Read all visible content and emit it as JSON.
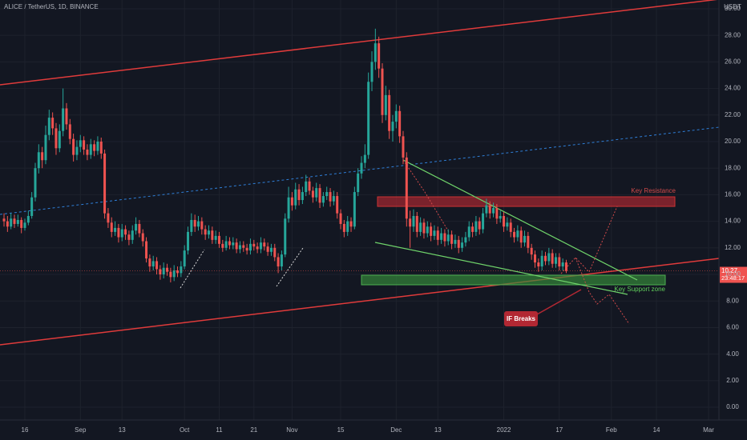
{
  "chart_data": {
    "type": "candlestick",
    "title": "ALICE / TetherUS, 1D, BINANCE",
    "currency": "USDT",
    "countdown": "23:48:17",
    "up_color": "#26a69a",
    "down_color": "#ef5350",
    "grid": true,
    "ylim": [
      -0.96,
      30.66
    ],
    "yticks": [
      {
        "value": 0,
        "label": "0.00"
      },
      {
        "value": 2,
        "label": "2.00"
      },
      {
        "value": 4,
        "label": "4.00"
      },
      {
        "value": 6,
        "label": "6.00"
      },
      {
        "value": 8,
        "label": "8.00"
      },
      {
        "value": 10,
        "label": "10.00"
      },
      {
        "value": 12,
        "label": "12.00"
      },
      {
        "value": 14,
        "label": "14.00"
      },
      {
        "value": 16,
        "label": "16.00"
      },
      {
        "value": 18,
        "label": "18.00"
      },
      {
        "value": 20,
        "label": "20.00"
      },
      {
        "value": 22,
        "label": "22.00"
      },
      {
        "value": 24,
        "label": "24.00"
      },
      {
        "value": 26,
        "label": "26.00"
      },
      {
        "value": 28,
        "label": "28.00"
      },
      {
        "value": 30,
        "label": "30.00"
      }
    ],
    "xlim": [
      -1.16,
      206
    ],
    "xticks": [
      {
        "value": 6,
        "label": "16"
      },
      {
        "value": 22,
        "label": "Sep"
      },
      {
        "value": 34,
        "label": "13"
      },
      {
        "value": 52,
        "label": "Oct"
      },
      {
        "value": 62,
        "label": "11"
      },
      {
        "value": 72,
        "label": "21"
      },
      {
        "value": 83,
        "label": "Nov"
      },
      {
        "value": 97,
        "label": "15"
      },
      {
        "value": 113,
        "label": "Dec"
      },
      {
        "value": 125,
        "label": "13"
      },
      {
        "value": 144,
        "label": "2022"
      },
      {
        "value": 160,
        "label": "17"
      },
      {
        "value": 175,
        "label": "Feb"
      },
      {
        "value": 188,
        "label": "14"
      },
      {
        "value": 203,
        "label": "Mar"
      }
    ],
    "annotations": {
      "resistance": "Key Resistance",
      "support": "Key Support zone",
      "breaks": "IF Breaks"
    },
    "candles": [
      [
        14.2,
        14.6,
        13.6,
        14.0
      ],
      [
        14.0,
        14.4,
        13.2,
        13.6
      ],
      [
        13.6,
        14.6,
        13.4,
        14.2
      ],
      [
        14.2,
        14.5,
        13.5,
        13.8
      ],
      [
        13.8,
        14.5,
        13.6,
        14.1
      ],
      [
        14.1,
        14.3,
        13.1,
        13.5
      ],
      [
        13.5,
        14.2,
        13.3,
        13.9
      ],
      [
        13.9,
        14.8,
        13.7,
        14.4
      ],
      [
        14.4,
        16.2,
        14.2,
        15.8
      ],
      [
        15.8,
        18.4,
        15.5,
        18.0
      ],
      [
        18.0,
        19.8,
        17.6,
        19.2
      ],
      [
        19.2,
        19.6,
        18.0,
        18.6
      ],
      [
        18.6,
        21.2,
        18.3,
        20.5
      ],
      [
        20.5,
        22.4,
        20.1,
        21.8
      ],
      [
        21.8,
        22.2,
        20.5,
        21.0
      ],
      [
        21.0,
        21.4,
        19.0,
        19.5
      ],
      [
        19.5,
        21.3,
        19.2,
        20.8
      ],
      [
        20.8,
        24.0,
        20.4,
        22.5
      ],
      [
        22.5,
        22.9,
        20.9,
        21.3
      ],
      [
        21.3,
        21.7,
        19.8,
        20.2
      ],
      [
        20.2,
        20.6,
        18.5,
        19.0
      ],
      [
        19.0,
        20.1,
        18.6,
        19.6
      ],
      [
        19.6,
        20.5,
        19.2,
        20.1
      ],
      [
        20.1,
        20.4,
        19.0,
        19.4
      ],
      [
        19.4,
        19.8,
        18.6,
        19.0
      ],
      [
        19.0,
        20.2,
        18.7,
        19.8
      ],
      [
        19.8,
        20.1,
        18.9,
        19.3
      ],
      [
        19.3,
        20.4,
        19.0,
        20.0
      ],
      [
        20.0,
        20.3,
        18.7,
        19.1
      ],
      [
        19.1,
        19.4,
        14.2,
        14.6
      ],
      [
        14.6,
        15.0,
        13.5,
        13.9
      ],
      [
        13.9,
        14.3,
        12.8,
        13.2
      ],
      [
        13.2,
        14.0,
        12.9,
        13.5
      ],
      [
        13.5,
        13.8,
        12.4,
        12.8
      ],
      [
        12.8,
        13.8,
        12.5,
        13.4
      ],
      [
        13.4,
        13.7,
        12.6,
        13.0
      ],
      [
        13.0,
        13.3,
        12.2,
        12.6
      ],
      [
        12.6,
        13.7,
        12.3,
        13.3
      ],
      [
        13.3,
        14.3,
        13.0,
        13.8
      ],
      [
        13.8,
        14.1,
        12.8,
        13.1
      ],
      [
        13.1,
        13.4,
        12.1,
        12.5
      ],
      [
        12.5,
        12.8,
        10.9,
        11.2
      ],
      [
        11.2,
        11.5,
        10.2,
        10.6
      ],
      [
        10.6,
        11.4,
        10.3,
        11.0
      ],
      [
        11.0,
        11.3,
        10.0,
        10.4
      ],
      [
        10.4,
        10.7,
        9.6,
        10.0
      ],
      [
        10.0,
        10.9,
        9.7,
        10.5
      ],
      [
        10.5,
        10.8,
        9.9,
        10.2
      ],
      [
        10.2,
        10.5,
        9.4,
        9.8
      ],
      [
        9.8,
        10.7,
        9.5,
        10.3
      ],
      [
        10.3,
        10.6,
        9.8,
        10.1
      ],
      [
        10.1,
        11.0,
        9.8,
        10.6
      ],
      [
        10.6,
        12.2,
        10.4,
        11.8
      ],
      [
        11.8,
        13.6,
        11.5,
        13.2
      ],
      [
        13.2,
        14.6,
        12.9,
        14.1
      ],
      [
        14.1,
        14.5,
        13.2,
        13.6
      ],
      [
        13.6,
        14.4,
        13.3,
        14.0
      ],
      [
        14.0,
        14.3,
        13.0,
        13.4
      ],
      [
        13.4,
        13.7,
        12.6,
        13.0
      ],
      [
        13.0,
        13.7,
        12.7,
        13.3
      ],
      [
        13.3,
        13.6,
        12.3,
        12.6
      ],
      [
        12.6,
        13.3,
        12.3,
        12.9
      ],
      [
        12.9,
        13.2,
        12.0,
        12.3
      ],
      [
        12.3,
        12.6,
        11.7,
        12.0
      ],
      [
        12.0,
        12.9,
        11.8,
        12.5
      ],
      [
        12.5,
        12.8,
        11.9,
        12.2
      ],
      [
        12.2,
        12.8,
        11.9,
        12.4
      ],
      [
        12.4,
        12.7,
        11.6,
        11.9
      ],
      [
        11.9,
        12.5,
        11.6,
        12.2
      ],
      [
        12.2,
        12.5,
        11.7,
        12.0
      ],
      [
        12.0,
        12.3,
        11.5,
        11.8
      ],
      [
        11.8,
        12.7,
        11.5,
        12.3
      ],
      [
        12.3,
        12.6,
        11.8,
        12.1
      ],
      [
        12.1,
        12.4,
        11.6,
        11.9
      ],
      [
        11.9,
        12.8,
        11.6,
        12.4
      ],
      [
        12.4,
        12.7,
        11.8,
        12.1
      ],
      [
        12.1,
        12.4,
        11.4,
        11.7
      ],
      [
        11.7,
        12.3,
        11.4,
        12.0
      ],
      [
        12.0,
        12.3,
        11.0,
        11.3
      ],
      [
        11.3,
        11.6,
        10.1,
        10.6
      ],
      [
        10.6,
        11.8,
        10.3,
        11.5
      ],
      [
        11.5,
        14.6,
        11.3,
        14.2
      ],
      [
        14.2,
        16.6,
        13.9,
        15.8
      ],
      [
        15.8,
        16.2,
        14.8,
        15.2
      ],
      [
        15.2,
        16.9,
        14.9,
        16.4
      ],
      [
        16.4,
        16.8,
        15.2,
        15.6
      ],
      [
        15.6,
        16.6,
        15.3,
        16.2
      ],
      [
        16.2,
        17.5,
        15.9,
        17.0
      ],
      [
        17.0,
        17.3,
        16.0,
        16.3
      ],
      [
        16.3,
        16.6,
        15.4,
        15.8
      ],
      [
        15.8,
        16.9,
        15.5,
        16.5
      ],
      [
        16.5,
        16.8,
        15.0,
        15.4
      ],
      [
        15.4,
        16.2,
        15.1,
        15.9
      ],
      [
        15.9,
        16.6,
        15.6,
        16.2
      ],
      [
        16.2,
        16.5,
        15.1,
        15.5
      ],
      [
        15.5,
        16.3,
        15.2,
        15.9
      ],
      [
        15.9,
        16.2,
        14.2,
        14.6
      ],
      [
        14.6,
        14.9,
        13.4,
        13.8
      ],
      [
        13.8,
        14.1,
        12.8,
        13.2
      ],
      [
        13.2,
        14.4,
        12.9,
        14.0
      ],
      [
        14.0,
        14.3,
        13.2,
        13.6
      ],
      [
        13.6,
        16.6,
        13.4,
        16.2
      ],
      [
        16.2,
        18.0,
        15.9,
        17.6
      ],
      [
        17.6,
        18.9,
        17.2,
        18.4
      ],
      [
        18.4,
        19.8,
        18.0,
        19.0
      ],
      [
        19.0,
        25.2,
        18.7,
        24.5
      ],
      [
        24.5,
        26.8,
        23.8,
        26.0
      ],
      [
        26.0,
        28.5,
        25.4,
        27.4
      ],
      [
        27.4,
        27.9,
        24.8,
        25.5
      ],
      [
        25.5,
        25.9,
        21.4,
        22.0
      ],
      [
        22.0,
        24.2,
        21.6,
        23.5
      ],
      [
        23.5,
        23.9,
        20.2,
        20.8
      ],
      [
        20.8,
        22.0,
        20.0,
        21.5
      ],
      [
        21.5,
        22.8,
        21.0,
        22.3
      ],
      [
        22.3,
        22.7,
        19.9,
        20.4
      ],
      [
        20.4,
        20.8,
        18.3,
        18.8
      ],
      [
        18.8,
        19.2,
        13.6,
        14.2
      ],
      [
        14.2,
        14.8,
        12.0,
        13.6
      ],
      [
        13.6,
        14.9,
        13.2,
        14.4
      ],
      [
        14.4,
        14.7,
        12.8,
        13.2
      ],
      [
        13.2,
        14.3,
        12.9,
        13.9
      ],
      [
        13.9,
        14.2,
        12.7,
        13.1
      ],
      [
        13.1,
        14.0,
        12.8,
        13.6
      ],
      [
        13.6,
        13.9,
        12.5,
        12.9
      ],
      [
        12.9,
        13.7,
        12.6,
        13.3
      ],
      [
        13.3,
        13.6,
        12.2,
        12.6
      ],
      [
        12.6,
        13.5,
        12.3,
        13.1
      ],
      [
        13.1,
        13.4,
        12.1,
        12.5
      ],
      [
        12.5,
        13.4,
        12.2,
        13.0
      ],
      [
        13.0,
        13.3,
        11.9,
        12.3
      ],
      [
        12.3,
        13.0,
        12.0,
        12.6
      ],
      [
        12.6,
        12.9,
        11.6,
        12.0
      ],
      [
        12.0,
        12.8,
        11.7,
        12.4
      ],
      [
        12.4,
        13.2,
        12.1,
        12.8
      ],
      [
        12.8,
        14.0,
        12.5,
        13.6
      ],
      [
        13.6,
        13.9,
        12.8,
        13.2
      ],
      [
        13.2,
        14.4,
        12.9,
        14.0
      ],
      [
        14.0,
        14.3,
        13.0,
        13.4
      ],
      [
        13.4,
        15.0,
        13.1,
        14.6
      ],
      [
        14.6,
        15.7,
        14.3,
        15.2
      ],
      [
        15.2,
        15.5,
        14.2,
        14.6
      ],
      [
        14.6,
        15.4,
        14.3,
        15.0
      ],
      [
        15.0,
        15.3,
        13.8,
        14.2
      ],
      [
        14.2,
        14.8,
        13.9,
        14.4
      ],
      [
        14.4,
        14.7,
        13.2,
        13.6
      ],
      [
        13.6,
        14.3,
        13.3,
        13.9
      ],
      [
        13.9,
        14.2,
        12.8,
        13.2
      ],
      [
        13.2,
        13.5,
        12.4,
        12.8
      ],
      [
        12.8,
        13.7,
        12.5,
        13.3
      ],
      [
        13.3,
        13.6,
        12.0,
        12.4
      ],
      [
        12.4,
        13.3,
        12.1,
        12.9
      ],
      [
        12.9,
        13.2,
        11.6,
        12.0
      ],
      [
        12.0,
        12.3,
        11.1,
        11.5
      ],
      [
        11.5,
        11.8,
        10.5,
        10.9
      ],
      [
        10.9,
        11.2,
        10.2,
        10.6
      ],
      [
        10.6,
        11.8,
        10.3,
        11.4
      ],
      [
        11.4,
        11.7,
        10.7,
        11.0
      ],
      [
        11.0,
        12.0,
        10.7,
        11.6
      ],
      [
        11.6,
        11.9,
        10.5,
        10.8
      ],
      [
        10.8,
        11.6,
        10.5,
        11.3
      ],
      [
        11.3,
        11.6,
        10.3,
        10.6
      ],
      [
        10.6,
        11.2,
        10.3,
        10.9
      ],
      [
        10.9,
        11.1,
        10.1,
        10.27
      ]
    ]
  }
}
